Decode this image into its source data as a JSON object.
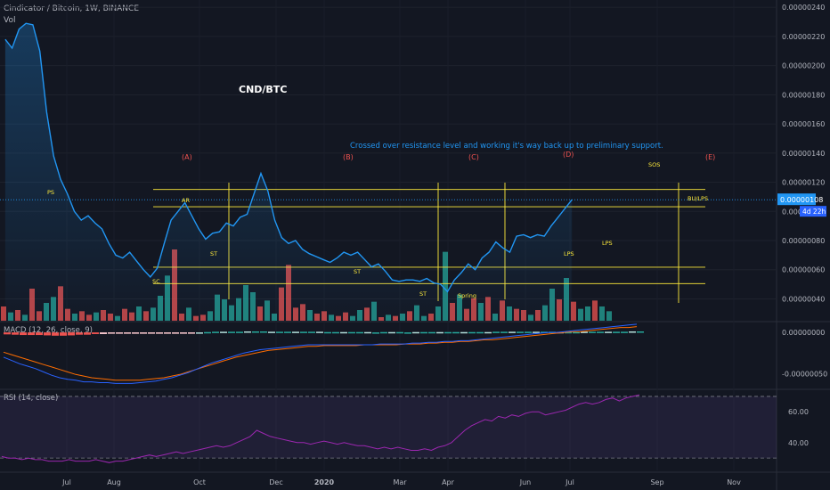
{
  "header": {
    "title": "Cindicator / Bitcoin, 1W, BINANCE",
    "vol_label": "Vol"
  },
  "colors": {
    "background": "#131722",
    "price_line": "#2196f3",
    "level_line": "#ffeb3b",
    "vol_up": "#26a69a",
    "vol_down": "#ef5350",
    "macd_line": "#2962ff",
    "signal_line": "#ff6d00",
    "rsi_line": "#9c27b0",
    "phase_label": "#ef5350",
    "event_label": "#ffeb3b",
    "note_text": "#2196f3"
  },
  "chart_data": [
    {
      "type": "line",
      "title": "CND/BTC",
      "annotation": "Crossed over resistance level and working it's way back up to preliminary support.",
      "ylim": [
        2.5e-07,
        2.45e-06
      ],
      "y_ticks": [
        "0.00000240",
        "0.00000220",
        "0.00000200",
        "0.00000180",
        "0.00000160",
        "0.00000140",
        "0.00000120",
        "0.00000100",
        "0.00000080",
        "0.00000060",
        "0.00000040"
      ],
      "x_ticks": [
        "Jul",
        "Aug",
        "Oct",
        "Dec",
        "2020",
        "Mar",
        "Apr",
        "Jun",
        "Jul",
        "Sep",
        "Nov"
      ],
      "last_price": "0.00000108",
      "countdown": "4d 22h",
      "price": [
        218,
        212,
        225,
        229,
        228,
        210,
        168,
        138,
        122,
        112,
        100,
        94,
        97,
        92,
        88,
        78,
        70,
        68,
        72,
        66,
        60,
        55,
        61,
        78,
        94,
        100,
        106,
        97,
        88,
        81,
        85,
        86,
        92,
        90,
        96,
        98,
        112,
        126,
        114,
        94,
        82,
        78,
        80,
        74,
        71,
        69,
        67,
        65,
        68,
        72,
        70,
        72,
        67,
        62,
        64,
        59,
        53,
        52,
        53,
        53,
        52,
        54,
        51,
        50,
        45,
        53,
        58,
        64,
        60,
        68,
        72,
        79,
        75,
        72,
        83,
        84,
        82,
        84,
        83,
        90,
        96,
        102,
        108
      ],
      "levels": [
        {
          "y": 1.15e-06
        },
        {
          "y": 1.032e-06
        },
        {
          "y": 6.17e-07
        },
        {
          "y": 5.05e-07
        }
      ],
      "phases": [
        "(A)",
        "(B)",
        "(C)",
        "(D)",
        "(E)"
      ],
      "events": [
        "PS",
        "AR",
        "SC",
        "ST",
        "ST",
        "ST",
        "Spring",
        "LPS",
        "LPS",
        "SOS",
        "BU/LPS"
      ]
    },
    {
      "type": "bar",
      "series": [
        {
          "name": "Vol"
        }
      ],
      "values": [
        12,
        7,
        9,
        5,
        27,
        8,
        15,
        20,
        29,
        10,
        6,
        8,
        5,
        7,
        9,
        6,
        4,
        10,
        7,
        12,
        8,
        11,
        21,
        38,
        60,
        6,
        11,
        4,
        5,
        8,
        22,
        18,
        13,
        19,
        30,
        24,
        12,
        17,
        6,
        28,
        47,
        11,
        14,
        9,
        6,
        8,
        5,
        4,
        7,
        4,
        9,
        11,
        16,
        3,
        5,
        4,
        6,
        8,
        13,
        4,
        6,
        12,
        58,
        15,
        22,
        10,
        19,
        15,
        20,
        6,
        17,
        12,
        10,
        9,
        5,
        9,
        13,
        27,
        18,
        36,
        16,
        10,
        12,
        17,
        12,
        8
      ],
      "up": [
        0,
        1,
        0,
        1,
        0,
        0,
        1,
        1,
        0,
        0,
        1,
        0,
        0,
        1,
        0,
        0,
        1,
        0,
        0,
        1,
        0,
        1,
        1,
        1,
        0,
        0,
        1,
        0,
        0,
        1,
        1,
        1,
        1,
        1,
        1,
        1,
        0,
        1,
        1,
        0,
        0,
        0,
        0,
        1,
        0,
        0,
        1,
        0,
        0,
        1,
        1,
        0,
        1,
        0,
        1,
        0,
        1,
        0,
        1,
        1,
        0,
        1,
        1,
        0,
        1,
        0,
        0,
        1,
        0,
        1,
        0,
        1,
        0,
        0,
        1,
        0,
        1,
        1,
        0,
        1,
        0,
        1,
        1,
        0,
        1,
        1
      ]
    },
    {
      "type": "line",
      "title": "MACD (12, 26, close, 9)",
      "ylim": [
        -6.8e-07,
        1.2e-07
      ],
      "y_ticks": [
        "0.00000000",
        "-0.00000050"
      ],
      "macd": [
        -0.3,
        -0.34,
        -0.38,
        -0.41,
        -0.44,
        -0.48,
        -0.52,
        -0.55,
        -0.57,
        -0.58,
        -0.6,
        -0.6,
        -0.61,
        -0.61,
        -0.62,
        -0.62,
        -0.62,
        -0.61,
        -0.6,
        -0.59,
        -0.57,
        -0.55,
        -0.52,
        -0.49,
        -0.45,
        -0.41,
        -0.37,
        -0.34,
        -0.31,
        -0.28,
        -0.25,
        -0.23,
        -0.21,
        -0.2,
        -0.19,
        -0.18,
        -0.17,
        -0.16,
        -0.15,
        -0.15,
        -0.15,
        -0.15,
        -0.15,
        -0.15,
        -0.15,
        -0.15,
        -0.15,
        -0.14,
        -0.14,
        -0.14,
        -0.14,
        -0.13,
        -0.13,
        -0.12,
        -0.12,
        -0.11,
        -0.11,
        -0.1,
        -0.1,
        -0.09,
        -0.08,
        -0.07,
        -0.06,
        -0.05,
        -0.04,
        -0.03,
        -0.02,
        -0.01,
        -0.0,
        0.0,
        0.01,
        0.02,
        0.03,
        0.04,
        0.05,
        0.06,
        0.07,
        0.08,
        0.09,
        0.1
      ],
      "signal": [
        -0.24,
        -0.27,
        -0.3,
        -0.33,
        -0.36,
        -0.39,
        -0.42,
        -0.45,
        -0.48,
        -0.51,
        -0.53,
        -0.55,
        -0.56,
        -0.57,
        -0.58,
        -0.58,
        -0.58,
        -0.58,
        -0.57,
        -0.56,
        -0.55,
        -0.53,
        -0.51,
        -0.48,
        -0.45,
        -0.42,
        -0.39,
        -0.36,
        -0.33,
        -0.3,
        -0.28,
        -0.26,
        -0.24,
        -0.22,
        -0.21,
        -0.2,
        -0.19,
        -0.18,
        -0.17,
        -0.17,
        -0.16,
        -0.16,
        -0.16,
        -0.16,
        -0.16,
        -0.15,
        -0.15,
        -0.15,
        -0.15,
        -0.15,
        -0.14,
        -0.14,
        -0.14,
        -0.13,
        -0.13,
        -0.12,
        -0.12,
        -0.11,
        -0.11,
        -0.1,
        -0.09,
        -0.09,
        -0.08,
        -0.07,
        -0.06,
        -0.05,
        -0.04,
        -0.03,
        -0.02,
        -0.01,
        0.0,
        0.01,
        0.01,
        0.02,
        0.03,
        0.04,
        0.05,
        0.06,
        0.06,
        0.07
      ],
      "histogram": [
        -0.06,
        -0.07,
        -0.08,
        -0.08,
        -0.08,
        -0.09,
        -0.1,
        -0.1,
        -0.09,
        -0.07,
        -0.07,
        -0.05,
        -0.05,
        -0.04,
        -0.04,
        -0.04,
        -0.04,
        -0.03,
        -0.03,
        -0.03,
        -0.02,
        -0.02,
        -0.01,
        -0.01,
        0.0,
        0.01,
        0.02,
        0.02,
        0.02,
        0.02,
        0.03,
        0.03,
        0.03,
        0.02,
        0.02,
        0.02,
        0.02,
        0.02,
        0.02,
        0.02,
        0.01,
        0.01,
        0.01,
        0.01,
        0.01,
        0.01,
        0.0,
        0.01,
        0.01,
        0.01,
        0.0,
        0.01,
        0.01,
        0.01,
        0.01,
        0.01,
        0.01,
        0.01,
        0.01,
        0.01,
        0.01,
        0.02,
        0.02,
        0.02,
        0.02,
        0.02,
        0.02,
        0.02,
        0.02,
        0.01,
        0.01,
        0.01,
        0.02,
        0.02,
        0.02,
        0.02,
        0.02,
        0.02,
        0.03,
        0.03
      ]
    },
    {
      "type": "line",
      "title": "RSI (14, close)",
      "ylim": [
        22,
        74
      ],
      "y_ticks": [
        "60.00",
        "40.00"
      ],
      "bands": [
        70,
        30
      ],
      "rsi": [
        31,
        30,
        30,
        29,
        30,
        29,
        29,
        28,
        28,
        28,
        29,
        28,
        28,
        28,
        29,
        28,
        27,
        28,
        28,
        29,
        30,
        31,
        32,
        31,
        32,
        33,
        34,
        33,
        34,
        35,
        36,
        37,
        38,
        37,
        38,
        40,
        42,
        44,
        48,
        46,
        44,
        43,
        42,
        41,
        40,
        40,
        39,
        40,
        41,
        40,
        39,
        40,
        39,
        38,
        38,
        37,
        36,
        37,
        36,
        37,
        36,
        35,
        35,
        36,
        35,
        37,
        38,
        40,
        44,
        48,
        51,
        53,
        55,
        54,
        57,
        56,
        58,
        57,
        59,
        60,
        60,
        58,
        59,
        60,
        61,
        63,
        65,
        66,
        65,
        66,
        68,
        69,
        67,
        69,
        70,
        71
      ]
    }
  ]
}
